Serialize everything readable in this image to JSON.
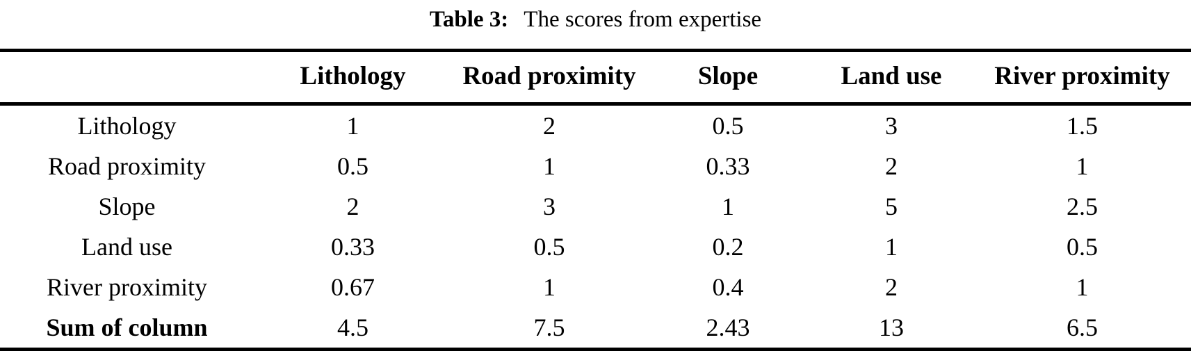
{
  "title": {
    "label": "Table 3:",
    "text": "The scores from expertise"
  },
  "colors": {
    "text": "#000000",
    "background": "#ffffff",
    "rule": "#000000"
  },
  "chart_data": {
    "type": "table",
    "title": "Table 3: The scores from expertise",
    "columns": [
      "",
      "Lithology",
      "Road proximity",
      "Slope",
      "Land use",
      "River proximity"
    ],
    "rows": [
      {
        "label": "Lithology",
        "bold": false,
        "values": [
          "1",
          "2",
          "0.5",
          "3",
          "1.5"
        ]
      },
      {
        "label": "Road proximity",
        "bold": false,
        "values": [
          "0.5",
          "1",
          "0.33",
          "2",
          "1"
        ]
      },
      {
        "label": "Slope",
        "bold": false,
        "values": [
          "2",
          "3",
          "1",
          "5",
          "2.5"
        ]
      },
      {
        "label": "Land use",
        "bold": false,
        "values": [
          "0.33",
          "0.5",
          "0.2",
          "1",
          "0.5"
        ]
      },
      {
        "label": "River proximity",
        "bold": false,
        "values": [
          "0.67",
          "1",
          "0.4",
          "2",
          "1"
        ]
      },
      {
        "label": "Sum of column",
        "bold": true,
        "values": [
          "4.5",
          "7.5",
          "2.43",
          "13",
          "6.5"
        ]
      }
    ]
  }
}
